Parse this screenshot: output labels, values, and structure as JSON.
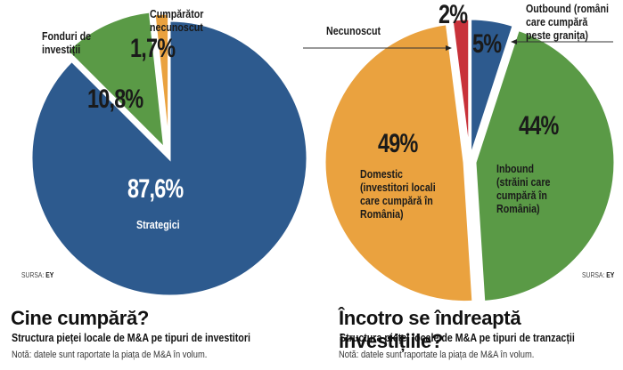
{
  "chart_data": [
    {
      "type": "pie",
      "title": "Cine cumpără?",
      "subtitle": "Structura pieței locale de M&A pe tipuri de investitori",
      "note": "Notă: datele sunt raportate la piața de M&A în volum.",
      "source_label": "SURSA:",
      "source_value": "EY",
      "slices": [
        {
          "label": "Strategici",
          "value": 87.6,
          "display": "87,6%",
          "color": "#2d5a8e"
        },
        {
          "label": "Fonduri de investiții",
          "label_lines": [
            "Fonduri de",
            "investiții"
          ],
          "value": 10.8,
          "display": "10,8%",
          "color": "#5a9a46"
        },
        {
          "label": "Cumpărător necunoscut",
          "label_lines": [
            "Cumpărător",
            "necunoscut"
          ],
          "value": 1.7,
          "display": "1,7%",
          "color": "#eaa23f"
        }
      ]
    },
    {
      "type": "pie",
      "title": "Încotro se îndreaptă investițiile?",
      "subtitle": "Structura pieței locale de M&A pe tipuri de tranzacții",
      "note": "Notă: datele sunt raportate la piața de M&A în volum.",
      "source_label": "SURSA:",
      "source_value": "EY",
      "slices": [
        {
          "label": "Outbound (români care cumpără peste granița)",
          "label_lines": [
            "Outbound (români",
            "care cumpără",
            "peste granița)"
          ],
          "value": 5,
          "display": "5%",
          "color": "#2d5a8e"
        },
        {
          "label": "Inbound (străini care cumpără în România)",
          "label_lines": [
            "Inbound",
            "(străini care",
            "cumpără în",
            "România)"
          ],
          "value": 44,
          "display": "44%",
          "color": "#5a9a46"
        },
        {
          "label": "Domestic (investitori locali care cumpără în România)",
          "label_lines": [
            "Domestic",
            "(investitori locali",
            "care cumpără în",
            "România)"
          ],
          "value": 49,
          "display": "49%",
          "color": "#eaa23f"
        },
        {
          "label": "Necunoscut",
          "value": 2,
          "display": "2%",
          "color": "#c8323a"
        }
      ]
    }
  ]
}
